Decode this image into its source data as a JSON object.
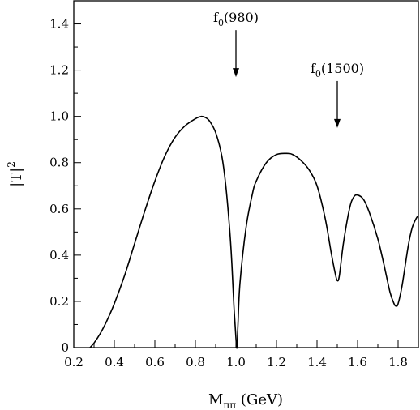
{
  "chart_data": {
    "type": "line",
    "title": "",
    "xlabel_main": "M",
    "xlabel_sub": "ππ",
    "xlabel_unit": " (GeV)",
    "ylabel_main": "|T|",
    "ylabel_sup": "2",
    "xlim": [
      0.2,
      1.9
    ],
    "ylim": [
      0,
      1.5
    ],
    "x_ticks": [
      0.2,
      0.4,
      0.6,
      0.8,
      1.0,
      1.2,
      1.4,
      1.6,
      1.8
    ],
    "x_tick_labels": [
      "0.2",
      "0.4",
      "0.6",
      "0.8",
      "1.0",
      "1.2",
      "1.4",
      "1.6",
      "1.8"
    ],
    "y_ticks": [
      0,
      0.2,
      0.4,
      0.6,
      0.8,
      1.0,
      1.2,
      1.4
    ],
    "y_tick_labels": [
      "0",
      "0.2",
      "0.4",
      "0.6",
      "0.8",
      "1.0",
      "1.2",
      "1.4"
    ],
    "grid": false,
    "legend": "none",
    "series": [
      {
        "x": [
          0.28,
          0.3,
          0.33,
          0.36,
          0.4,
          0.45,
          0.5,
          0.55,
          0.6,
          0.65,
          0.7,
          0.75,
          0.8,
          0.83,
          0.85,
          0.87,
          0.9,
          0.93,
          0.95,
          0.97,
          0.98,
          0.99,
          1.0,
          1.005,
          1.01,
          1.02,
          1.05,
          1.08,
          1.1,
          1.15,
          1.2,
          1.25,
          1.28,
          1.32,
          1.36,
          1.4,
          1.44,
          1.47,
          1.49,
          1.5,
          1.51,
          1.53,
          1.56,
          1.58,
          1.6,
          1.63,
          1.66,
          1.7,
          1.73,
          1.76,
          1.78,
          1.79,
          1.8,
          1.82,
          1.85,
          1.87,
          1.89,
          1.9
        ],
        "y": [
          0,
          0.02,
          0.06,
          0.11,
          0.19,
          0.31,
          0.45,
          0.59,
          0.72,
          0.83,
          0.91,
          0.96,
          0.99,
          1.0,
          0.995,
          0.98,
          0.93,
          0.83,
          0.7,
          0.5,
          0.36,
          0.18,
          0.04,
          0.0,
          0.1,
          0.28,
          0.52,
          0.66,
          0.72,
          0.8,
          0.835,
          0.84,
          0.835,
          0.81,
          0.77,
          0.7,
          0.56,
          0.41,
          0.32,
          0.29,
          0.31,
          0.45,
          0.6,
          0.65,
          0.66,
          0.64,
          0.58,
          0.47,
          0.36,
          0.24,
          0.19,
          0.18,
          0.19,
          0.27,
          0.44,
          0.52,
          0.56,
          0.57
        ]
      }
    ],
    "annotations": [
      {
        "text_main": "f",
        "text_sub": "0",
        "text_rest": "(980)",
        "x": 1.0,
        "y": 1.17
      },
      {
        "text_main": "f",
        "text_sub": "0",
        "text_rest": "(1500)",
        "x": 1.5,
        "y": 0.95
      }
    ]
  }
}
